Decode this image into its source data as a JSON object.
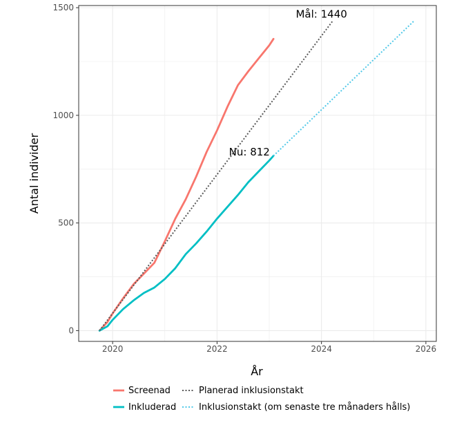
{
  "chart_data": {
    "type": "line",
    "xlabel": "År",
    "ylabel": "Antal individer",
    "xlim": [
      2019.35,
      2026.2
    ],
    "ylim": [
      -50,
      1510
    ],
    "x_ticks": [
      2020,
      2022,
      2024,
      2026
    ],
    "x_tick_labels": [
      "2020",
      "2022",
      "2024",
      "2026"
    ],
    "y_ticks": [
      0,
      500,
      1000,
      1500
    ],
    "y_tick_labels": [
      "0",
      "500",
      "1000",
      "1500"
    ],
    "grid": true,
    "legend_position": "bottom",
    "colors": {
      "screenad": "#f8766d",
      "inkluderad": "#00bfc4",
      "planerad": "#595959",
      "inklusionstakt": "#4fc8e8",
      "grid": "#ebebeb",
      "border": "#333333"
    },
    "series": [
      {
        "key": "screenad",
        "name": "Screenad",
        "style": "solid",
        "x": [
          2019.75,
          2019.9,
          2020.0,
          2020.2,
          2020.4,
          2020.6,
          2020.8,
          2021.0,
          2021.2,
          2021.4,
          2021.6,
          2021.8,
          2022.0,
          2022.2,
          2022.4,
          2022.6,
          2022.8,
          2023.0,
          2023.08
        ],
        "values": [
          0,
          40,
          80,
          150,
          215,
          265,
          315,
          415,
          520,
          610,
          715,
          830,
          930,
          1040,
          1140,
          1205,
          1265,
          1325,
          1355
        ]
      },
      {
        "key": "inkluderad",
        "name": "Inkluderad",
        "style": "solid",
        "x": [
          2019.75,
          2019.9,
          2020.0,
          2020.2,
          2020.4,
          2020.6,
          2020.8,
          2021.0,
          2021.2,
          2021.4,
          2021.6,
          2021.8,
          2022.0,
          2022.2,
          2022.4,
          2022.6,
          2022.8,
          2023.0,
          2023.08
        ],
        "values": [
          0,
          20,
          50,
          100,
          140,
          175,
          200,
          240,
          290,
          355,
          405,
          460,
          520,
          575,
          630,
          690,
          740,
          790,
          812
        ]
      },
      {
        "key": "planerad",
        "name": "Planerad inklusionstakt",
        "style": "dotted",
        "x": [
          2019.75,
          2024.22
        ],
        "values": [
          0,
          1440
        ]
      },
      {
        "key": "inklusionstakt",
        "name": "Inklusionstakt (om senaste tre månaders hålls)",
        "style": "dotted",
        "x": [
          2023.08,
          2025.78
        ],
        "values": [
          812,
          1440
        ]
      }
    ],
    "annotations": [
      {
        "text": "Mål: 1440",
        "x": 2024.0,
        "y": 1470
      },
      {
        "text": "Nu: 812",
        "x": 2022.62,
        "y": 830
      }
    ]
  }
}
